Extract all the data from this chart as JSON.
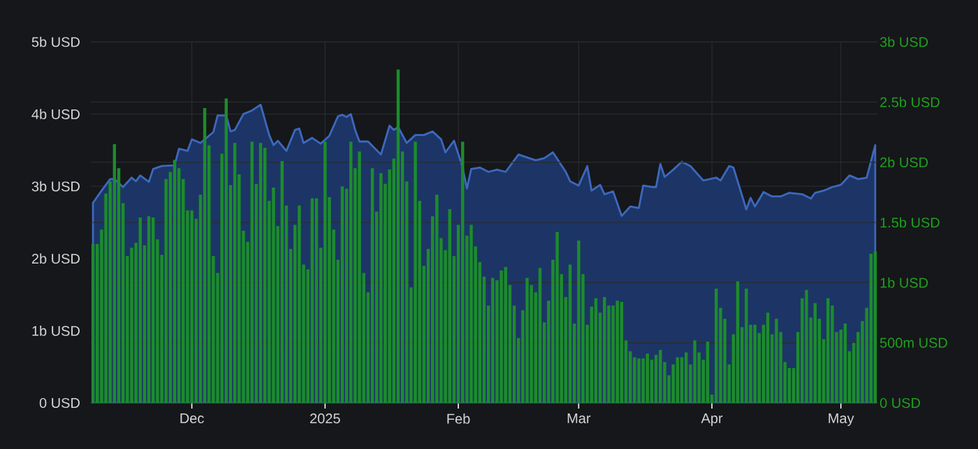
{
  "chart_data": {
    "type": "bar",
    "grid": true,
    "x": [
      "2024-11-08",
      "2024-11-09",
      "2024-11-10",
      "2024-11-11",
      "2024-11-12",
      "2024-11-13",
      "2024-11-14",
      "2024-11-15",
      "2024-11-16",
      "2024-11-17",
      "2024-11-18",
      "2024-11-19",
      "2024-11-20",
      "2024-11-21",
      "2024-11-22",
      "2024-11-23",
      "2024-11-24",
      "2024-11-25",
      "2024-11-26",
      "2024-11-27",
      "2024-11-28",
      "2024-11-29",
      "2024-11-30",
      "2024-12-01",
      "2024-12-02",
      "2024-12-03",
      "2024-12-04",
      "2024-12-05",
      "2024-12-06",
      "2024-12-07",
      "2024-12-08",
      "2024-12-09",
      "2024-12-10",
      "2024-12-11",
      "2024-12-12",
      "2024-12-13",
      "2024-12-14",
      "2024-12-15",
      "2024-12-16",
      "2024-12-17",
      "2024-12-18",
      "2024-12-19",
      "2024-12-20",
      "2024-12-21",
      "2024-12-22",
      "2024-12-23",
      "2024-12-24",
      "2024-12-25",
      "2024-12-26",
      "2024-12-27",
      "2024-12-28",
      "2024-12-29",
      "2024-12-30",
      "2024-12-31",
      "2025-01-01",
      "2025-01-02",
      "2025-01-03",
      "2025-01-04",
      "2025-01-05",
      "2025-01-06",
      "2025-01-07",
      "2025-01-08",
      "2025-01-09",
      "2025-01-10",
      "2025-01-11",
      "2025-01-12",
      "2025-01-13",
      "2025-01-14",
      "2025-01-15",
      "2025-01-16",
      "2025-01-17",
      "2025-01-18",
      "2025-01-19",
      "2025-01-20",
      "2025-01-21",
      "2025-01-22",
      "2025-01-23",
      "2025-01-24",
      "2025-01-25",
      "2025-01-26",
      "2025-01-27",
      "2025-01-28",
      "2025-01-29",
      "2025-01-30",
      "2025-01-31",
      "2025-02-01",
      "2025-02-02",
      "2025-02-03",
      "2025-02-04",
      "2025-02-05",
      "2025-02-06",
      "2025-02-07",
      "2025-02-08",
      "2025-02-09",
      "2025-02-10",
      "2025-02-11",
      "2025-02-12",
      "2025-02-13",
      "2025-02-14",
      "2025-02-15",
      "2025-02-16",
      "2025-02-17",
      "2025-02-18",
      "2025-02-19",
      "2025-02-20",
      "2025-02-21",
      "2025-02-22",
      "2025-02-23",
      "2025-02-24",
      "2025-02-25",
      "2025-02-26",
      "2025-02-27",
      "2025-02-28",
      "2025-03-01",
      "2025-03-02",
      "2025-03-03",
      "2025-03-04",
      "2025-03-05",
      "2025-03-06",
      "2025-03-07",
      "2025-03-08",
      "2025-03-09",
      "2025-03-10",
      "2025-03-11",
      "2025-03-12",
      "2025-03-13",
      "2025-03-14",
      "2025-03-15",
      "2025-03-16",
      "2025-03-17",
      "2025-03-18",
      "2025-03-19",
      "2025-03-20",
      "2025-03-21",
      "2025-03-22",
      "2025-03-23",
      "2025-03-24",
      "2025-03-25",
      "2025-03-26",
      "2025-03-27",
      "2025-03-28",
      "2025-03-29",
      "2025-03-30",
      "2025-03-31",
      "2025-04-01",
      "2025-04-02",
      "2025-04-03",
      "2025-04-04",
      "2025-04-05",
      "2025-04-06",
      "2025-04-07",
      "2025-04-08",
      "2025-04-09",
      "2025-04-10",
      "2025-04-11",
      "2025-04-12",
      "2025-04-13",
      "2025-04-14",
      "2025-04-15",
      "2025-04-16",
      "2025-04-17",
      "2025-04-18",
      "2025-04-19",
      "2025-04-20",
      "2025-04-21",
      "2025-04-22",
      "2025-04-23",
      "2025-04-24",
      "2025-04-25",
      "2025-04-26",
      "2025-04-27",
      "2025-04-28",
      "2025-04-29",
      "2025-04-30",
      "2025-05-01",
      "2025-05-02",
      "2025-05-03",
      "2025-05-04",
      "2025-05-05",
      "2025-05-06",
      "2025-05-07",
      "2025-05-08",
      "2025-05-09"
    ],
    "xlim": [
      "2024-11-07T12:00",
      "2025-05-09T12:00"
    ],
    "xticks": [
      {
        "value": "2024-12-01",
        "label": "Dec"
      },
      {
        "value": "2025-01-01",
        "label": "2025"
      },
      {
        "value": "2025-02-01",
        "label": "Feb"
      },
      {
        "value": "2025-03-01",
        "label": "Mar"
      },
      {
        "value": "2025-04-01",
        "label": "Apr"
      },
      {
        "value": "2025-05-01",
        "label": "May"
      }
    ],
    "ylim": [
      0,
      5000000000.0
    ],
    "yticks": [
      {
        "value": 0,
        "label": "0 USD"
      },
      {
        "value": 1000000000.0,
        "label": "1b USD"
      },
      {
        "value": 2000000000.0,
        "label": "2b USD"
      },
      {
        "value": 3000000000.0,
        "label": "3b USD"
      },
      {
        "value": 4000000000.0,
        "label": "4b USD"
      },
      {
        "value": 5000000000.0,
        "label": "5b USD"
      }
    ],
    "y2lim": [
      0,
      3000000000.0
    ],
    "y2ticks": [
      {
        "value": 0,
        "label": "0 USD"
      },
      {
        "value": 500000000.0,
        "label": "500m USD"
      },
      {
        "value": 1000000000.0,
        "label": "1b USD"
      },
      {
        "value": 1500000000.0,
        "label": "1.5b USD"
      },
      {
        "value": 2000000000.0,
        "label": "2b USD"
      },
      {
        "value": 2500000000.0,
        "label": "2.5b USD"
      },
      {
        "value": 3000000000.0,
        "label": "3b USD"
      }
    ],
    "series": [
      {
        "axis": "y2",
        "color": "#1c8c2c",
        "values": [
          1320000000.0,
          1320000000.0,
          1440000000.0,
          1740000000.0,
          1840000000.0,
          2150000000.0,
          1950000000.0,
          1660000000.0,
          1220000000.0,
          1290000000.0,
          1330000000.0,
          1540000000.0,
          1310000000.0,
          1550000000.0,
          1540000000.0,
          1360000000.0,
          1230000000.0,
          1860000000.0,
          1920000000.0,
          2020000000.0,
          1950000000.0,
          1860000000.0,
          1600000000.0,
          1600000000.0,
          1530000000.0,
          1730000000.0,
          2450000000.0,
          2140000000.0,
          1220000000.0,
          1080000000.0,
          2070000000.0,
          2530000000.0,
          1810000000.0,
          2160000000.0,
          1900000000.0,
          1430000000.0,
          1340000000.0,
          2170000000.0,
          1820000000.0,
          2160000000.0,
          2120000000.0,
          1680000000.0,
          1790000000.0,
          1470000000.0,
          2010000000.0,
          1640000000.0,
          1280000000.0,
          1480000000.0,
          1640000000.0,
          1150000000.0,
          1110000000.0,
          1700000000.0,
          1700000000.0,
          1290000000.0,
          2170000000.0,
          1710000000.0,
          1440000000.0,
          1190000000.0,
          1800000000.0,
          1780000000.0,
          2170000000.0,
          1950000000.0,
          2090000000.0,
          1080000000.0,
          920000000.0,
          1950000000.0,
          1590000000.0,
          1910000000.0,
          1820000000.0,
          1940000000.0,
          2030000000.0,
          2770000000.0,
          2090000000.0,
          1840000000.0,
          960000000.0,
          2170000000.0,
          1680000000.0,
          1140000000.0,
          1280000000.0,
          1550000000.0,
          1730000000.0,
          1370000000.0,
          1270000000.0,
          1610000000.0,
          1220000000.0,
          1480000000.0,
          2170000000.0,
          1390000000.0,
          1480000000.0,
          1300000000.0,
          1170000000.0,
          1050000000.0,
          810000000.0,
          1040000000.0,
          1020000000.0,
          1100000000.0,
          1130000000.0,
          980000000.0,
          810000000.0,
          540000000.0,
          770000000.0,
          1040000000.0,
          980000000.0,
          920000000.0,
          1120000000.0,
          670000000.0,
          850000000.0,
          1190000000.0,
          1420000000.0,
          1070000000.0,
          880000000.0,
          1150000000.0,
          660000000.0,
          1350000000.0,
          1070000000.0,
          650000000.0,
          800000000.0,
          870000000.0,
          750000000.0,
          880000000.0,
          810000000.0,
          810000000.0,
          850000000.0,
          840000000.0,
          520000000.0,
          430000000.0,
          380000000.0,
          370000000.0,
          370000000.0,
          410000000.0,
          360000000.0,
          400000000.0,
          440000000.0,
          340000000.0,
          230000000.0,
          320000000.0,
          380000000.0,
          380000000.0,
          420000000.0,
          320000000.0,
          520000000.0,
          420000000.0,
          360000000.0,
          510000000.0,
          70000000.0,
          950000000.0,
          790000000.0,
          700000000.0,
          320000000.0,
          570000000.0,
          1010000000.0,
          630000000.0,
          950000000.0,
          650000000.0,
          650000000.0,
          580000000.0,
          650000000.0,
          750000000.0,
          570000000.0,
          700000000.0,
          590000000.0,
          340000000.0,
          290000000.0,
          290000000.0,
          590000000.0,
          870000000.0,
          940000000.0,
          710000000.0,
          830000000.0,
          700000000.0,
          530000000.0,
          870000000.0,
          810000000.0,
          590000000.0,
          610000000.0,
          660000000.0,
          430000000.0,
          500000000.0,
          590000000.0,
          680000000.0,
          790000000.0,
          1240000000.0,
          1260000000.0
        ]
      },
      {
        "type": "area",
        "color": "#1c3566",
        "x": [
          "2024-11-08",
          "2024-11-10",
          "2024-11-12",
          "2024-11-13",
          "2024-11-15",
          "2024-11-17",
          "2024-11-18",
          "2024-11-19",
          "2024-11-21",
          "2024-11-22",
          "2024-11-24",
          "2024-11-27",
          "2024-11-28",
          "2024-11-30",
          "2024-12-01",
          "2024-12-03",
          "2024-12-04",
          "2024-12-06",
          "2024-12-07",
          "2024-12-09",
          "2024-12-10",
          "2024-12-11",
          "2024-12-13",
          "2024-12-15",
          "2024-12-17",
          "2024-12-19",
          "2024-12-20",
          "2024-12-21",
          "2024-12-23",
          "2024-12-25",
          "2024-12-26",
          "2024-12-27",
          "2024-12-29",
          "2024-12-31",
          "2025-01-02",
          "2025-01-04",
          "2025-01-05",
          "2025-01-06",
          "2025-01-07",
          "2025-01-08",
          "2025-01-09",
          "2025-01-11",
          "2025-01-14",
          "2025-01-16",
          "2025-01-17",
          "2025-01-18",
          "2025-01-20",
          "2025-01-22",
          "2025-01-24",
          "2025-01-26",
          "2025-01-28",
          "2025-01-29",
          "2025-01-31",
          "2025-02-02",
          "2025-02-03",
          "2025-02-04",
          "2025-02-06",
          "2025-02-08",
          "2025-02-10",
          "2025-02-12",
          "2025-02-15",
          "2025-02-19",
          "2025-02-21",
          "2025-02-23",
          "2025-02-24",
          "2025-02-26",
          "2025-02-27",
          "2025-03-01",
          "2025-03-03",
          "2025-03-04",
          "2025-03-06",
          "2025-03-07",
          "2025-03-09",
          "2025-03-11",
          "2025-03-13",
          "2025-03-15",
          "2025-03-16",
          "2025-03-18",
          "2025-03-19",
          "2025-03-20",
          "2025-03-21",
          "2025-03-23",
          "2025-03-25",
          "2025-03-27",
          "2025-03-30",
          "2025-04-02",
          "2025-04-03",
          "2025-04-05",
          "2025-04-06",
          "2025-04-09",
          "2025-04-10",
          "2025-04-11",
          "2025-04-13",
          "2025-04-15",
          "2025-04-17",
          "2025-04-19",
          "2025-04-22",
          "2025-04-24",
          "2025-04-25",
          "2025-04-27",
          "2025-04-29",
          "2025-05-01",
          "2025-05-03",
          "2025-05-05",
          "2025-05-07",
          "2025-05-09"
        ],
        "values": [
          2770000000.0,
          2940000000.0,
          3100000000.0,
          3100000000.0,
          2990000000.0,
          3120000000.0,
          3070000000.0,
          3150000000.0,
          3060000000.0,
          3240000000.0,
          3280000000.0,
          3290000000.0,
          3520000000.0,
          3490000000.0,
          3650000000.0,
          3600000000.0,
          3650000000.0,
          3750000000.0,
          3980000000.0,
          3980000000.0,
          3760000000.0,
          3780000000.0,
          4000000000.0,
          4050000000.0,
          4130000000.0,
          3710000000.0,
          3570000000.0,
          3630000000.0,
          3490000000.0,
          3780000000.0,
          3800000000.0,
          3600000000.0,
          3670000000.0,
          3590000000.0,
          3700000000.0,
          3970000000.0,
          3990000000.0,
          3960000000.0,
          4000000000.0,
          3780000000.0,
          3620000000.0,
          3620000000.0,
          3440000000.0,
          3840000000.0,
          3780000000.0,
          3820000000.0,
          3600000000.0,
          3710000000.0,
          3710000000.0,
          3760000000.0,
          3650000000.0,
          3470000000.0,
          3630000000.0,
          3260000000.0,
          2970000000.0,
          3240000000.0,
          3260000000.0,
          3200000000.0,
          3230000000.0,
          3200000000.0,
          3440000000.0,
          3360000000.0,
          3390000000.0,
          3470000000.0,
          3380000000.0,
          3200000000.0,
          3070000000.0,
          3010000000.0,
          3280000000.0,
          2940000000.0,
          3020000000.0,
          2890000000.0,
          2930000000.0,
          2590000000.0,
          2720000000.0,
          2700000000.0,
          3010000000.0,
          2990000000.0,
          2990000000.0,
          3310000000.0,
          3130000000.0,
          3230000000.0,
          3340000000.0,
          3280000000.0,
          3080000000.0,
          3120000000.0,
          3080000000.0,
          3280000000.0,
          3260000000.0,
          2680000000.0,
          2840000000.0,
          2720000000.0,
          2920000000.0,
          2860000000.0,
          2860000000.0,
          2910000000.0,
          2890000000.0,
          2830000000.0,
          2910000000.0,
          2940000000.0,
          2990000000.0,
          3020000000.0,
          3150000000.0,
          3100000000.0,
          3120000000.0,
          3570000000.0
        ]
      }
    ]
  }
}
